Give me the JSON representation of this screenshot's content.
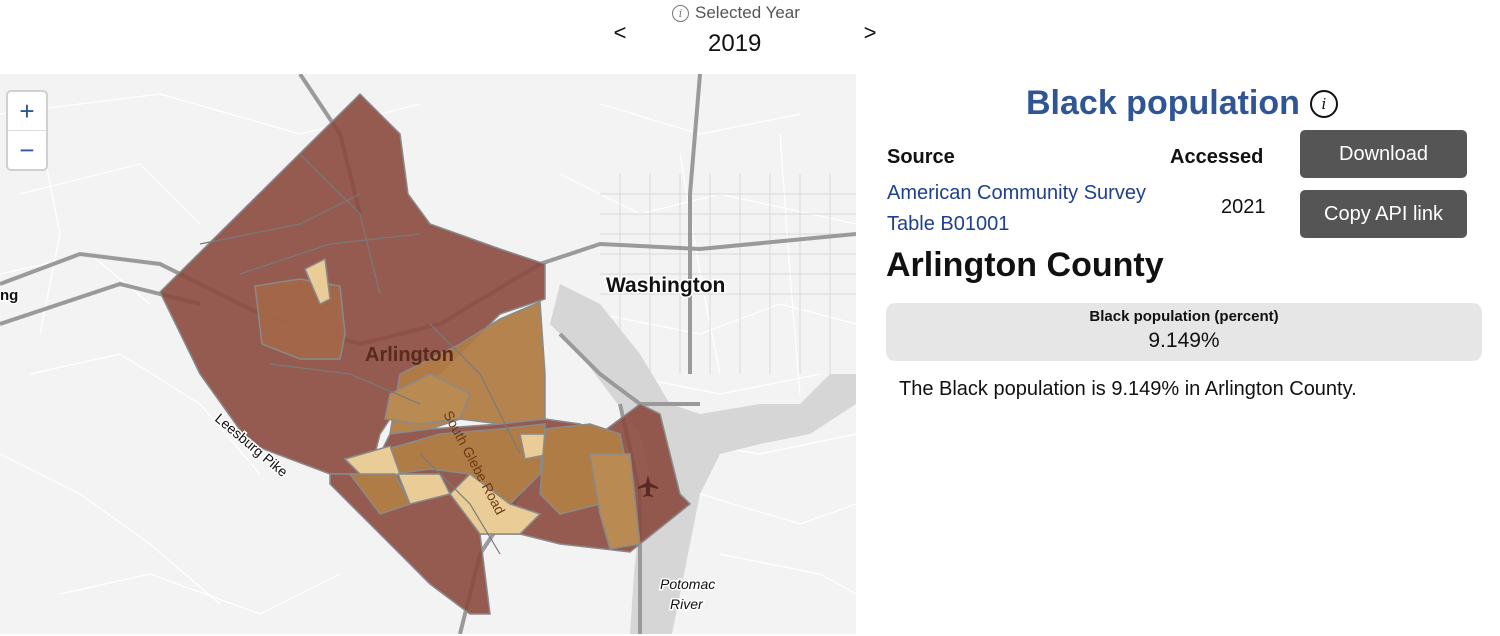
{
  "year_selector": {
    "label": "Selected Year",
    "info_icon": "ⓘ",
    "prev": "<",
    "next": ">",
    "year": "2019"
  },
  "map": {
    "zoom_in": "+",
    "zoom_out": "−",
    "labels": {
      "washington": "Washington",
      "arlington": "Arlington",
      "leesburg_pike": "Leesburg Pike",
      "south_glebe_road": "South Glebe Road",
      "potomac": "Potomac",
      "river": "River",
      "edge_fragment": "ng"
    },
    "colors": {
      "dark": "#8b4a3e",
      "mid": "#b07c45",
      "light": "#e9cc96",
      "tract_border": "#8a8a8a",
      "water": "#d6d6d6"
    },
    "icons": [
      "airport-icon"
    ]
  },
  "panel": {
    "title": "Black population",
    "source_header": "Source",
    "accessed_header": "Accessed",
    "source_line1": "American Community Survey",
    "source_line2": "Table B01001",
    "accessed_value": "2021",
    "download_label": "Download",
    "copy_api_label": "Copy API link",
    "county": "Arlington County",
    "stat_label": "Black population (percent)",
    "stat_value": "9.149%",
    "description": "The Black population is 9.149% in Arlington County.",
    "accent_color": "#2f5597"
  }
}
